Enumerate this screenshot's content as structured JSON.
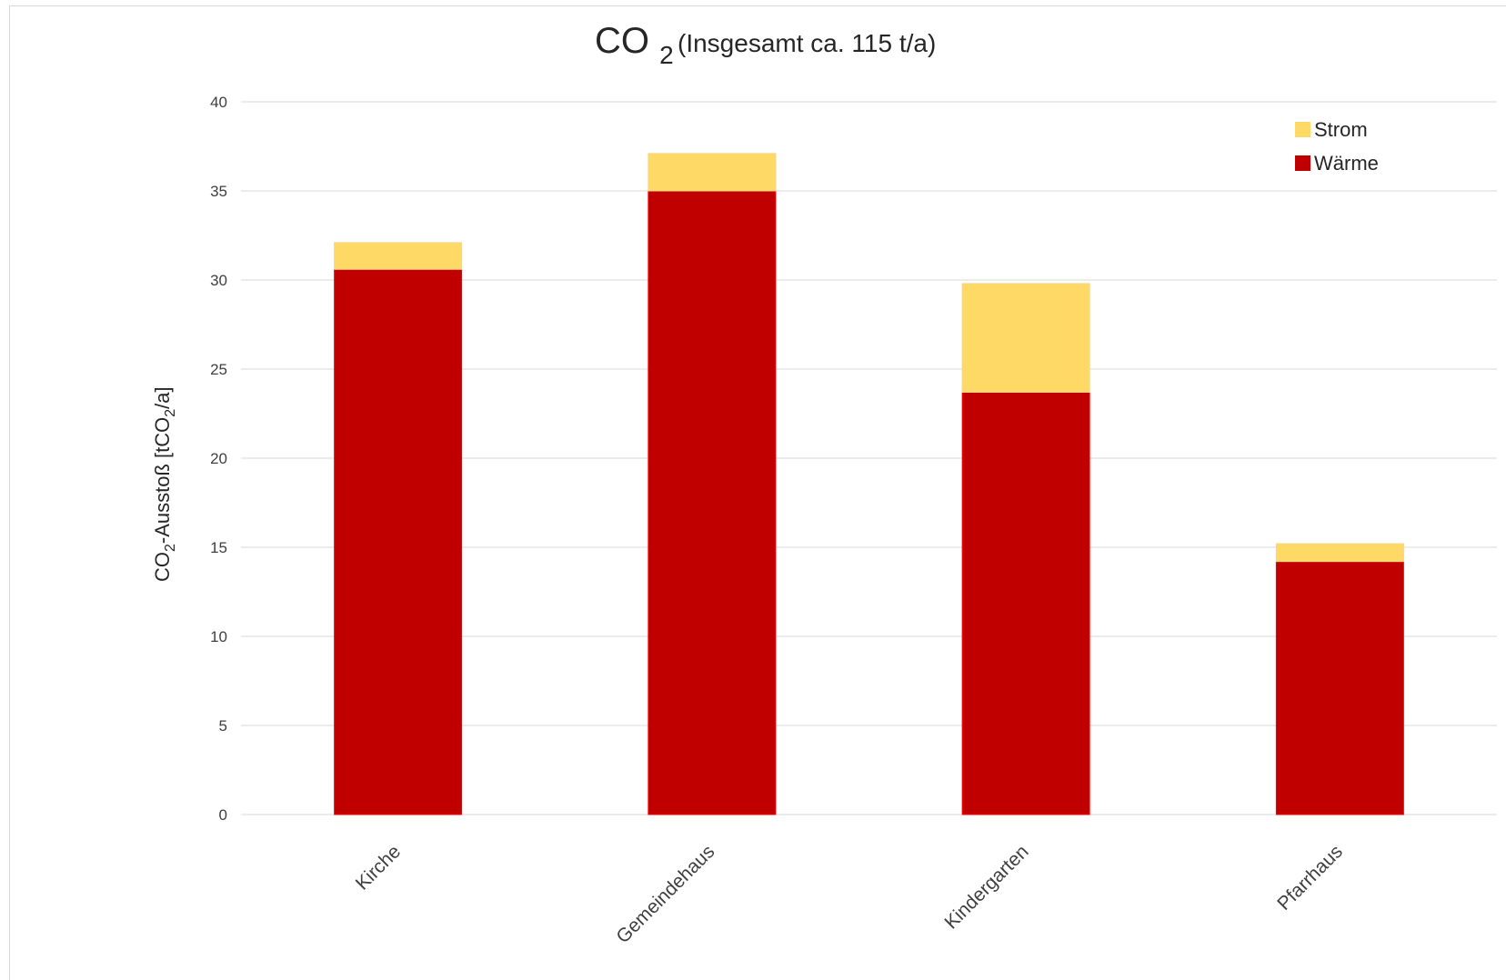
{
  "chart_data": {
    "type": "bar",
    "stacked": true,
    "title": "CO",
    "title_subscript": "2",
    "subtitle": "(Insgesamt ca. 115 t/a)",
    "ylabel_prefix": "CO",
    "ylabel_sub": "2",
    "ylabel_mid": "-Ausstoß  [tCO",
    "ylabel_sub2": "2",
    "ylabel_suffix": "/a]",
    "ylim": [
      0,
      40
    ],
    "yticks": [
      0,
      5,
      10,
      15,
      20,
      25,
      30,
      35,
      40
    ],
    "grid": true,
    "legend_position": "top-right",
    "categories": [
      "Kirche",
      "Gemeindehaus",
      "Kindergarten",
      "Pfarrhaus"
    ],
    "series": [
      {
        "name": "Wärme",
        "color": "#c00000",
        "values": [
          30.6,
          35.0,
          23.7,
          14.2
        ]
      },
      {
        "name": "Strom",
        "color": "#ffd966",
        "values": [
          1.5,
          2.1,
          6.1,
          1.0
        ]
      }
    ],
    "legend_order": [
      "Strom",
      "Wärme"
    ]
  }
}
